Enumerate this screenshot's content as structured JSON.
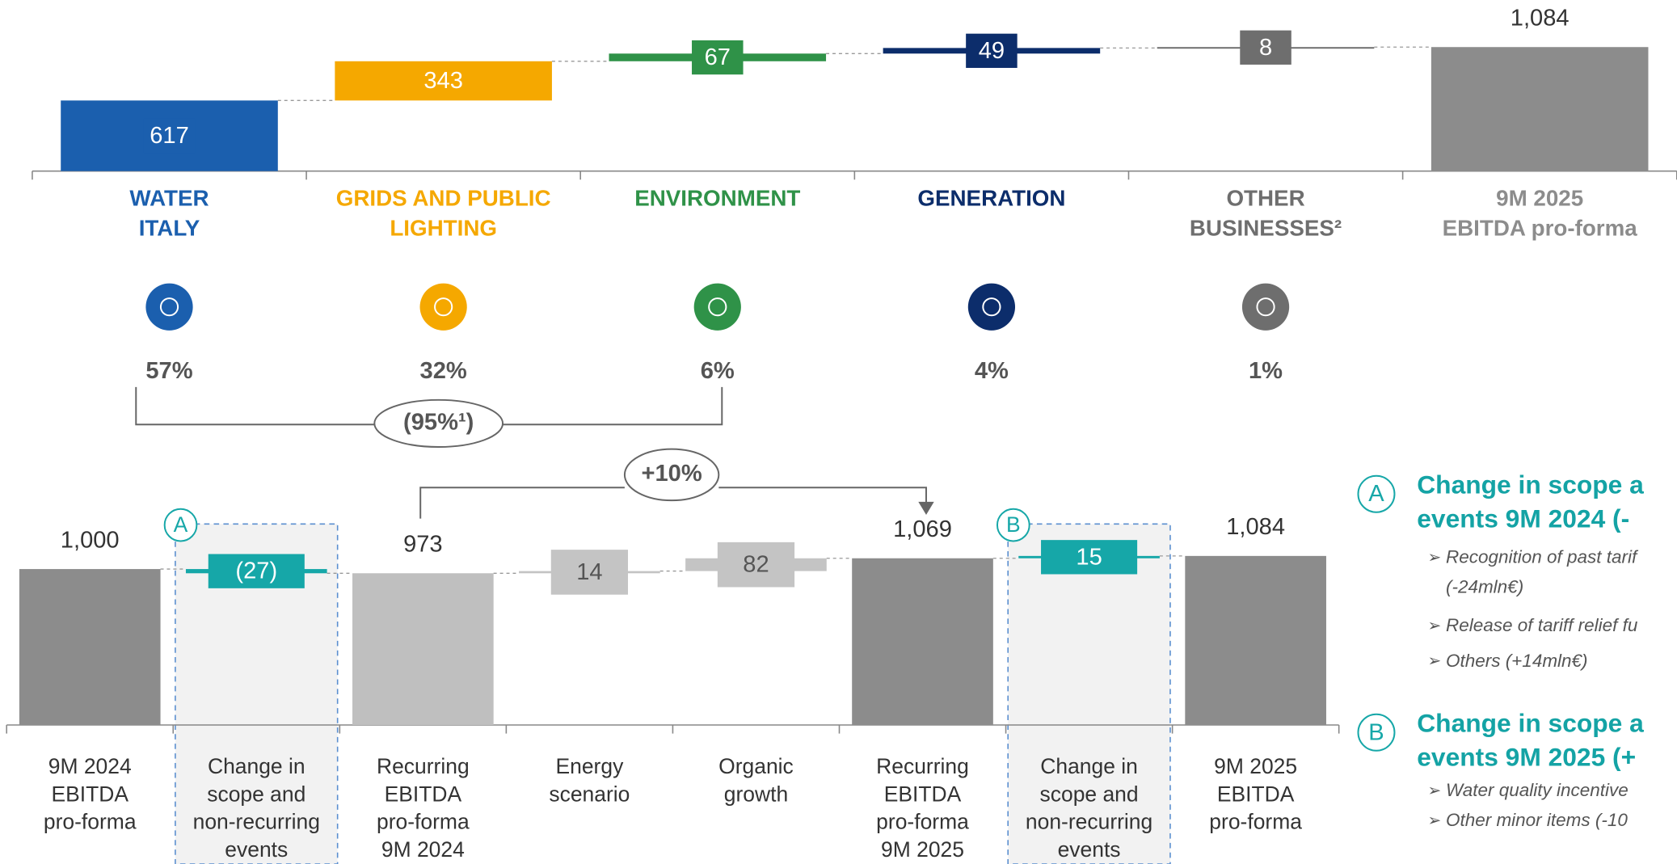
{
  "chart_data": [
    {
      "type": "waterfall",
      "categories": [
        "WATER\nITALY",
        "GRIDS AND PUBLIC\nLIGHTING",
        "ENVIRONMENT",
        "GENERATION",
        "OTHER\nBUSINESSES²",
        "9M 2025\nEBITDA pro-forma"
      ],
      "values": [
        617,
        343,
        67,
        49,
        8,
        1084
      ],
      "value_labels": [
        "617",
        "343",
        "67",
        "49",
        "8",
        "1,084"
      ],
      "measures": [
        "relative",
        "relative",
        "relative",
        "relative",
        "relative",
        "total"
      ],
      "colors": [
        "#1b5fae",
        "#f5a800",
        "#2f9248",
        "#0c2d6b",
        "#6e6e6e",
        "#8c8c8c"
      ],
      "ylim": [
        0,
        1200
      ],
      "shares": [
        "57%",
        "32%",
        "6%",
        "4%",
        "1%"
      ],
      "share_bracket_label": "(95%¹)"
    },
    {
      "type": "waterfall",
      "categories": [
        "9M 2024\nEBITDA\npro-forma",
        "Change in\nscope and\nnon-recurring\nevents",
        "Recurring\nEBITDA\npro-forma\n9M 2024",
        "Energy\nscenario",
        "Organic\ngrowth",
        "Recurring\nEBITDA\npro-forma\n9M 2025",
        "Change in\nscope and\nnon-recurring\nevents",
        "9M 2025\nEBITDA\npro-forma"
      ],
      "values": [
        1000,
        -27,
        973,
        14,
        82,
        1069,
        15,
        1084
      ],
      "value_labels": [
        "1,000",
        "(27)",
        "973",
        "14",
        "82",
        "1,069",
        "15",
        "1,084"
      ],
      "measures": [
        "total",
        "relative",
        "total",
        "relative",
        "relative",
        "total",
        "relative",
        "total"
      ],
      "colors": [
        "#8c8c8c",
        "#16a7a8",
        "#bfbfbf",
        "#c4c4c4",
        "#c4c4c4",
        "#8c8c8c",
        "#16a7a8",
        "#8c8c8c"
      ],
      "ylim": [
        0,
        1200
      ],
      "highlights": [
        {
          "index": 1,
          "marker": "A"
        },
        {
          "index": 6,
          "marker": "B"
        }
      ],
      "growth_label": "+10%"
    }
  ],
  "notes": [
    {
      "marker": "A",
      "title": [
        "Change in scope a",
        "events 9M 2024  (-"
      ],
      "bullets": [
        "Recognition of past tarif",
        "(-24mln€)",
        "Release of tariff relief fu",
        "Others (+14mln€)"
      ]
    },
    {
      "marker": "B",
      "title": [
        "Change in scope a",
        "events 9M 2025 (+"
      ],
      "bullets": [
        "Water quality incentive",
        "Other minor items (-10"
      ]
    }
  ]
}
